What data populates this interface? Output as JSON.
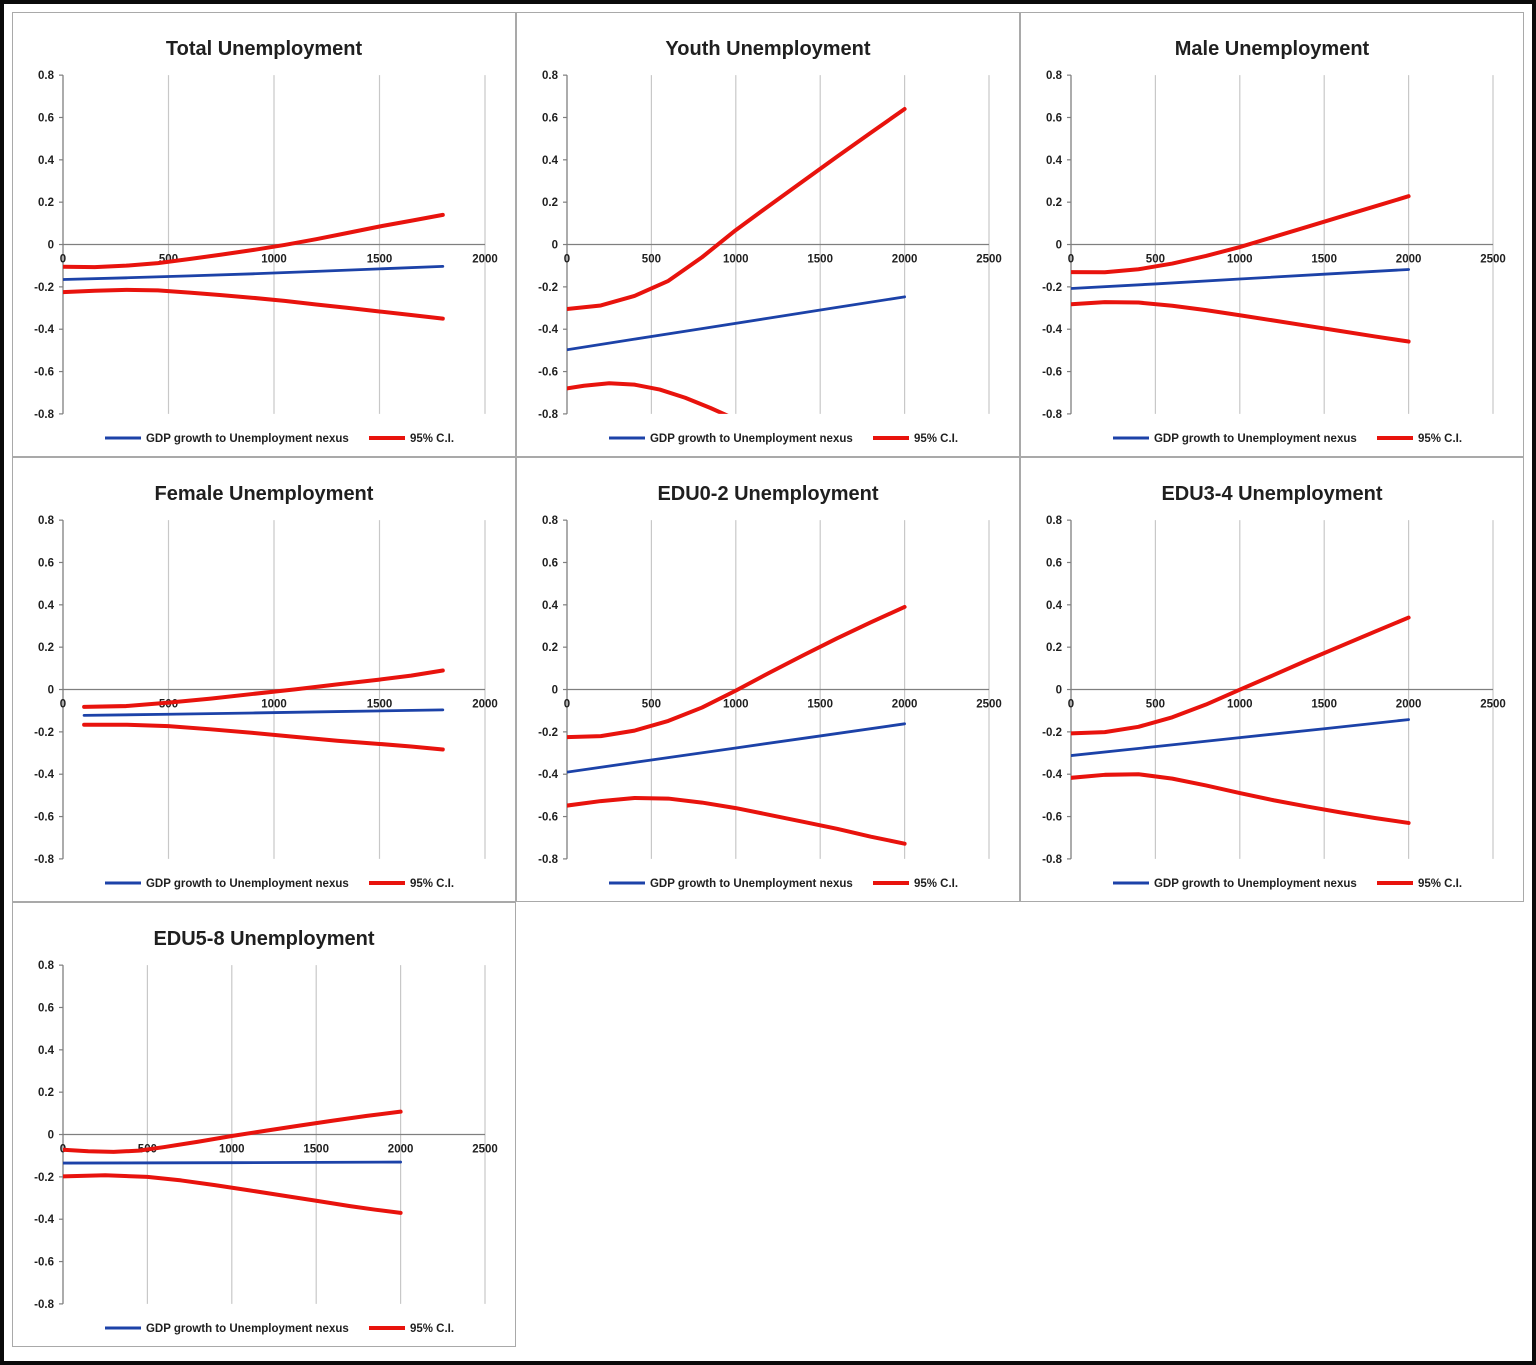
{
  "figure": {
    "background": "#ffffff",
    "border_color": "#0a0a0a"
  },
  "colors": {
    "line_blue": "#1c42a8",
    "line_red": "#e8130d",
    "gridline": "#c8c8c8",
    "axis": "#7f7f7f",
    "text": "#1f1f1f",
    "panel_border": "#a9a9a9"
  },
  "legend": {
    "series_label": "GDP growth to Unemployment nexus",
    "ci_label": "95%  C.I."
  },
  "chart_data": [
    {
      "type": "line",
      "title": "Total Unemployment",
      "xlabel": "",
      "ylabel": "",
      "xlim": [
        0,
        2000
      ],
      "ylim": [
        -0.8,
        0.8
      ],
      "x_ticks": [
        "0",
        "500",
        "1000",
        "1500",
        "2000"
      ],
      "y_ticks": [
        "0.8",
        "0.6",
        "0.4",
        "0.2",
        "0",
        "-0.2",
        "-0.4",
        "-0.6",
        "-0.8"
      ],
      "grid": "vertical",
      "legend_position": "bottom",
      "series": [
        {
          "name": "GDP growth to Unemployment nexus",
          "color": "blue",
          "x": [
            0,
            300,
            600,
            900,
            1200,
            1500,
            1800
          ],
          "y": [
            -0.165,
            -0.157,
            -0.148,
            -0.138,
            -0.127,
            -0.115,
            -0.103
          ]
        },
        {
          "name": "95% C.I. upper",
          "color": "red",
          "x": [
            0,
            150,
            300,
            450,
            600,
            750,
            900,
            1050,
            1200,
            1350,
            1500,
            1650,
            1800
          ],
          "y": [
            -0.105,
            -0.107,
            -0.1,
            -0.088,
            -0.068,
            -0.048,
            -0.026,
            -0.002,
            0.025,
            0.055,
            0.085,
            0.112,
            0.14
          ]
        },
        {
          "name": "95% C.I. lower",
          "color": "red",
          "x": [
            0,
            150,
            300,
            450,
            600,
            750,
            900,
            1050,
            1200,
            1350,
            1500,
            1650,
            1800
          ],
          "y": [
            -0.225,
            -0.218,
            -0.214,
            -0.217,
            -0.227,
            -0.239,
            -0.252,
            -0.266,
            -0.283,
            -0.299,
            -0.316,
            -0.333,
            -0.35
          ]
        }
      ]
    },
    {
      "type": "line",
      "title": "Youth Unemployment",
      "xlabel": "",
      "ylabel": "",
      "xlim": [
        0,
        2500
      ],
      "ylim": [
        -0.8,
        0.8
      ],
      "x_ticks": [
        "0",
        "500",
        "1000",
        "1500",
        "2000",
        "2500"
      ],
      "y_ticks": [
        "0.8",
        "0.6",
        "0.4",
        "0.2",
        "0",
        "-0.2",
        "-0.4",
        "-0.6",
        "-0.8"
      ],
      "grid": "vertical",
      "legend_position": "bottom",
      "series": [
        {
          "name": "GDP growth to Unemployment nexus",
          "color": "blue",
          "x": [
            0,
            400,
            800,
            1200,
            1600,
            2000
          ],
          "y": [
            -0.497,
            -0.447,
            -0.397,
            -0.347,
            -0.297,
            -0.247
          ]
        },
        {
          "name": "95% C.I. upper",
          "color": "red",
          "x": [
            0,
            200,
            400,
            600,
            800,
            1000,
            1200,
            1400,
            1600,
            1800,
            2000
          ],
          "y": [
            -0.305,
            -0.288,
            -0.243,
            -0.172,
            -0.06,
            0.068,
            0.185,
            0.3,
            0.415,
            0.528,
            0.64
          ]
        },
        {
          "name": "95% C.I. lower",
          "color": "red",
          "x": [
            0,
            100,
            250,
            400,
            550,
            700,
            850,
            950,
            1050
          ],
          "y": [
            -0.68,
            -0.667,
            -0.655,
            -0.662,
            -0.685,
            -0.724,
            -0.772,
            -0.808,
            -0.85
          ]
        }
      ]
    },
    {
      "type": "line",
      "title": "Male Unemployment",
      "xlabel": "",
      "ylabel": "",
      "xlim": [
        0,
        2500
      ],
      "ylim": [
        -0.8,
        0.8
      ],
      "x_ticks": [
        "0",
        "500",
        "1000",
        "1500",
        "2000",
        "2500"
      ],
      "y_ticks": [
        "0.8",
        "0.6",
        "0.4",
        "0.2",
        "0",
        "-0.2",
        "-0.4",
        "-0.6",
        "-0.8"
      ],
      "grid": "vertical",
      "legend_position": "bottom",
      "series": [
        {
          "name": "GDP growth to Unemployment nexus",
          "color": "blue",
          "x": [
            0,
            500,
            1000,
            1500,
            2000
          ],
          "y": [
            -0.208,
            -0.186,
            -0.163,
            -0.14,
            -0.118
          ]
        },
        {
          "name": "95% C.I. upper",
          "color": "red",
          "x": [
            0,
            200,
            400,
            600,
            800,
            1000,
            1200,
            1400,
            1600,
            1800,
            2000
          ],
          "y": [
            -0.13,
            -0.131,
            -0.117,
            -0.09,
            -0.054,
            -0.012,
            0.036,
            0.084,
            0.132,
            0.18,
            0.228
          ]
        },
        {
          "name": "95% C.I. lower",
          "color": "red",
          "x": [
            0,
            200,
            400,
            600,
            800,
            1000,
            1200,
            1400,
            1600,
            1800,
            2000
          ],
          "y": [
            -0.282,
            -0.272,
            -0.274,
            -0.289,
            -0.31,
            -0.334,
            -0.359,
            -0.384,
            -0.409,
            -0.434,
            -0.458
          ]
        }
      ]
    },
    {
      "type": "line",
      "title": "Female Unemployment",
      "xlabel": "",
      "ylabel": "",
      "xlim": [
        0,
        2000
      ],
      "ylim": [
        -0.8,
        0.8
      ],
      "x_ticks": [
        "0",
        "500",
        "1000",
        "1500",
        "2000"
      ],
      "y_ticks": [
        "0.8",
        "0.6",
        "0.4",
        "0.2",
        "0",
        "-0.2",
        "-0.4",
        "-0.6",
        "-0.8"
      ],
      "grid": "vertical",
      "legend_position": "bottom",
      "series": [
        {
          "name": "GDP growth to Unemployment nexus",
          "color": "blue",
          "x": [
            100,
            500,
            900,
            1300,
            1800
          ],
          "y": [
            -0.122,
            -0.117,
            -0.111,
            -0.104,
            -0.096
          ]
        },
        {
          "name": "95% C.I. upper",
          "color": "red",
          "x": [
            100,
            300,
            500,
            700,
            900,
            1100,
            1300,
            1500,
            1650,
            1800
          ],
          "y": [
            -0.082,
            -0.078,
            -0.062,
            -0.043,
            -0.021,
            0.001,
            0.024,
            0.047,
            0.066,
            0.09
          ]
        },
        {
          "name": "95% C.I. lower",
          "color": "red",
          "x": [
            100,
            300,
            500,
            700,
            900,
            1100,
            1300,
            1500,
            1650,
            1800
          ],
          "y": [
            -0.166,
            -0.166,
            -0.173,
            -0.188,
            -0.205,
            -0.224,
            -0.242,
            -0.257,
            -0.269,
            -0.283
          ]
        }
      ]
    },
    {
      "type": "line",
      "title": "EDU0-2 Unemployment",
      "xlabel": "",
      "ylabel": "",
      "xlim": [
        0,
        2500
      ],
      "ylim": [
        -0.8,
        0.8
      ],
      "x_ticks": [
        "0",
        "500",
        "1000",
        "1500",
        "2000",
        "2500"
      ],
      "y_ticks": [
        "0.8",
        "0.6",
        "0.4",
        "0.2",
        "0",
        "-0.2",
        "-0.4",
        "-0.6",
        "-0.8"
      ],
      "grid": "vertical",
      "legend_position": "bottom",
      "series": [
        {
          "name": "GDP growth to Unemployment nexus",
          "color": "blue",
          "x": [
            0,
            500,
            1000,
            1500,
            2000
          ],
          "y": [
            -0.39,
            -0.333,
            -0.276,
            -0.219,
            -0.162
          ]
        },
        {
          "name": "95% C.I. upper",
          "color": "red",
          "x": [
            0,
            200,
            400,
            600,
            800,
            1000,
            1200,
            1400,
            1600,
            1800,
            2000
          ],
          "y": [
            -0.225,
            -0.22,
            -0.194,
            -0.148,
            -0.085,
            -0.005,
            0.08,
            0.162,
            0.242,
            0.317,
            0.39
          ]
        },
        {
          "name": "95% C.I. lower",
          "color": "red",
          "x": [
            0,
            200,
            400,
            600,
            800,
            1000,
            1200,
            1400,
            1600,
            1800,
            2000
          ],
          "y": [
            -0.548,
            -0.527,
            -0.512,
            -0.515,
            -0.534,
            -0.56,
            -0.592,
            -0.625,
            -0.658,
            -0.695,
            -0.728
          ]
        }
      ]
    },
    {
      "type": "line",
      "title": "EDU3-4 Unemployment",
      "xlabel": "",
      "ylabel": "",
      "xlim": [
        0,
        2500
      ],
      "ylim": [
        -0.8,
        0.8
      ],
      "x_ticks": [
        "0",
        "500",
        "1000",
        "1500",
        "2000",
        "2500"
      ],
      "y_ticks": [
        "0.8",
        "0.6",
        "0.4",
        "0.2",
        "0",
        "-0.2",
        "-0.4",
        "-0.6",
        "-0.8"
      ],
      "grid": "vertical",
      "legend_position": "bottom",
      "series": [
        {
          "name": "GDP growth to Unemployment nexus",
          "color": "blue",
          "x": [
            0,
            500,
            1000,
            1500,
            2000
          ],
          "y": [
            -0.312,
            -0.27,
            -0.227,
            -0.185,
            -0.142
          ]
        },
        {
          "name": "95% C.I. upper",
          "color": "red",
          "x": [
            0,
            200,
            400,
            600,
            800,
            1000,
            1200,
            1400,
            1600,
            1800,
            2000
          ],
          "y": [
            -0.207,
            -0.201,
            -0.176,
            -0.131,
            -0.071,
            -0.001,
            0.068,
            0.138,
            0.206,
            0.273,
            0.34
          ]
        },
        {
          "name": "95% C.I. lower",
          "color": "red",
          "x": [
            0,
            200,
            400,
            600,
            800,
            1000,
            1200,
            1400,
            1600,
            1800,
            2000
          ],
          "y": [
            -0.417,
            -0.403,
            -0.4,
            -0.421,
            -0.453,
            -0.489,
            -0.523,
            -0.553,
            -0.581,
            -0.607,
            -0.63
          ]
        }
      ]
    },
    {
      "type": "line",
      "title": "EDU5-8 Unemployment",
      "xlabel": "",
      "ylabel": "",
      "xlim": [
        0,
        2500
      ],
      "ylim": [
        -0.8,
        0.8
      ],
      "x_ticks": [
        "0",
        "500",
        "1000",
        "1500",
        "2000",
        "2500"
      ],
      "y_ticks": [
        "0.8",
        "0.6",
        "0.4",
        "0.2",
        "0",
        "-0.2",
        "-0.4",
        "-0.6",
        "-0.8"
      ],
      "grid": "vertical",
      "legend_position": "bottom",
      "series": [
        {
          "name": "GDP growth to Unemployment nexus",
          "color": "blue",
          "x": [
            0,
            1000,
            2000
          ],
          "y": [
            -0.135,
            -0.133,
            -0.13
          ]
        },
        {
          "name": "95% C.I. upper",
          "color": "red",
          "x": [
            0,
            150,
            300,
            450,
            600,
            800,
            1000,
            1200,
            1400,
            1600,
            1800,
            2000
          ],
          "y": [
            -0.072,
            -0.079,
            -0.082,
            -0.076,
            -0.059,
            -0.034,
            -0.007,
            0.018,
            0.042,
            0.066,
            0.088,
            0.108
          ]
        },
        {
          "name": "95% C.I. lower",
          "color": "red",
          "x": [
            0,
            250,
            500,
            700,
            900,
            1100,
            1300,
            1500,
            1700,
            1850,
            2000
          ],
          "y": [
            -0.198,
            -0.192,
            -0.2,
            -0.217,
            -0.239,
            -0.263,
            -0.288,
            -0.313,
            -0.338,
            -0.355,
            -0.37
          ]
        }
      ]
    }
  ]
}
